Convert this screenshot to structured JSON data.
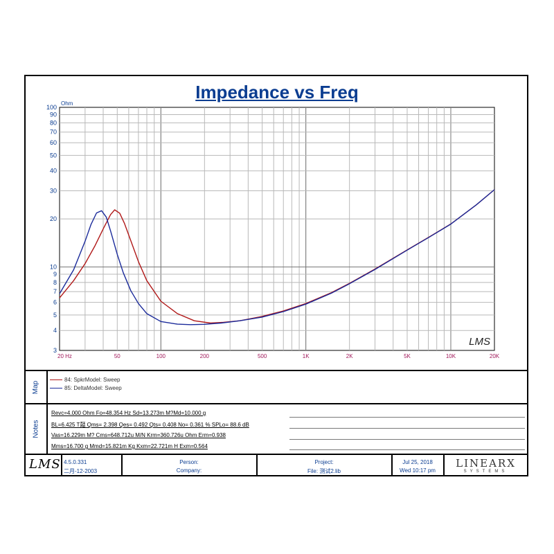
{
  "chart_data": {
    "type": "line",
    "title": "Impedance vs Freq",
    "ylabel": "Ohm",
    "xlabel": "",
    "x_scale": "log",
    "y_scale": "log",
    "xlim": [
      20,
      20000
    ],
    "ylim": [
      3,
      100
    ],
    "grid": true,
    "x_ticks": [
      {
        "v": 20,
        "label": "20  Hz"
      },
      {
        "v": 50,
        "label": "50"
      },
      {
        "v": 100,
        "label": "100"
      },
      {
        "v": 200,
        "label": "200"
      },
      {
        "v": 500,
        "label": "500"
      },
      {
        "v": 1000,
        "label": "1K"
      },
      {
        "v": 2000,
        "label": "2K"
      },
      {
        "v": 5000,
        "label": "5K"
      },
      {
        "v": 10000,
        "label": "10K"
      },
      {
        "v": 20000,
        "label": "20K"
      }
    ],
    "y_ticks": [
      {
        "v": 3,
        "label": "3"
      },
      {
        "v": 4,
        "label": "4"
      },
      {
        "v": 5,
        "label": "5"
      },
      {
        "v": 6,
        "label": "6"
      },
      {
        "v": 7,
        "label": "7"
      },
      {
        "v": 8,
        "label": "8"
      },
      {
        "v": 9,
        "label": "9"
      },
      {
        "v": 10,
        "label": "10"
      },
      {
        "v": 20,
        "label": "20"
      },
      {
        "v": 30,
        "label": "30"
      },
      {
        "v": 40,
        "label": "40"
      },
      {
        "v": 50,
        "label": "50"
      },
      {
        "v": 60,
        "label": "60"
      },
      {
        "v": 70,
        "label": "70"
      },
      {
        "v": 80,
        "label": "80"
      },
      {
        "v": 90,
        "label": "90"
      },
      {
        "v": 100,
        "label": "100"
      }
    ],
    "series": [
      {
        "name": "84: SpkrModel: Sweep",
        "color": "#b01818",
        "x": [
          20,
          25,
          30,
          35,
          40,
          45,
          48,
          52,
          56,
          62,
          70,
          80,
          100,
          130,
          170,
          220,
          270,
          350,
          500,
          700,
          1000,
          1500,
          2000,
          3000,
          5000,
          7000,
          10000,
          15000,
          20000
        ],
        "y": [
          6.4,
          8.2,
          10.5,
          13.5,
          17.3,
          21.3,
          22.8,
          21.7,
          18.8,
          14.6,
          10.8,
          8.2,
          6.1,
          5.1,
          4.6,
          4.45,
          4.5,
          4.6,
          4.9,
          5.3,
          5.9,
          6.9,
          7.9,
          9.7,
          12.8,
          15.3,
          18.6,
          24.5,
          30.5
        ]
      },
      {
        "name": "85: DeltaModel: Sweep",
        "color": "#1a2a9a",
        "x": [
          20,
          25,
          30,
          33,
          36,
          39,
          42,
          45,
          50,
          55,
          62,
          70,
          80,
          100,
          130,
          160,
          200,
          260,
          350,
          500,
          700,
          1000,
          1500,
          2000,
          3000,
          5000,
          7000,
          10000,
          15000,
          20000
        ],
        "y": [
          6.8,
          9.6,
          14.5,
          18.5,
          21.8,
          22.5,
          20.5,
          16.8,
          12.0,
          9.2,
          7.1,
          5.9,
          5.1,
          4.55,
          4.38,
          4.35,
          4.37,
          4.45,
          4.6,
          4.85,
          5.25,
          5.85,
          6.85,
          7.85,
          9.65,
          12.75,
          15.25,
          18.55,
          24.5,
          30.5
        ]
      }
    ],
    "legend": "left-below-plot"
  },
  "watermark": "LMS",
  "side_labels": {
    "map": "Map",
    "notes": "Notes"
  },
  "notes": [
    "Revc=4.000 Ohm  Fo=48.354 Hz  Sd=13.273m M?Md=10.000 g",
    "BL=6.425 T嚭  Qms= 2.398  Qes= 0.492  Qts= 0.408  No= 0.361 %  SPLo= 88.6 dB",
    "Vas=16.229m M? Cms=648.712u M/N  Krm=360.726u Ohm  Erm=0.938",
    "Mms=16.700 g  Mmd=15.821m Kg  Kxm=22.721m H  Exm=0.564"
  ],
  "footer": {
    "logo": "LMS",
    "version": "4.5.0.331",
    "build_date": "二月-12-2003",
    "person_label": "Person:",
    "company_label": "Company:",
    "project_label": "Project:",
    "file_label": "File: 测试2.lib",
    "date": "Jul 25, 2018",
    "time": "Wed 10:17 pm",
    "brand_main": "LINEARX",
    "brand_sub": "SYSTEMS",
    "brand_color": "#333333"
  }
}
